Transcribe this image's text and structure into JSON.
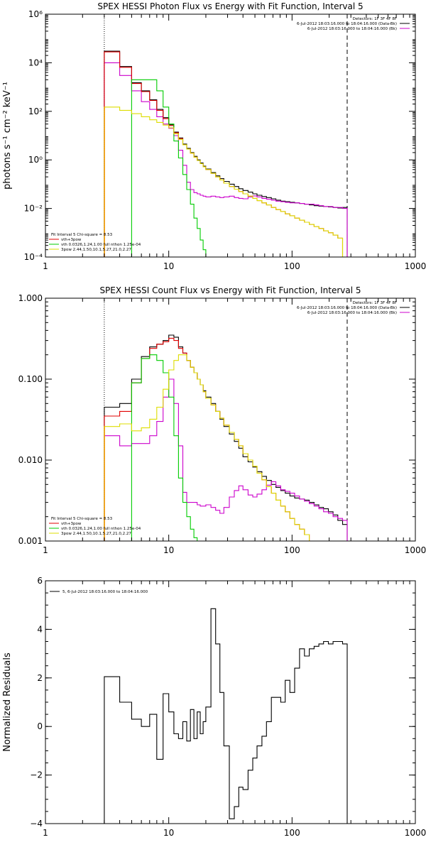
{
  "colors": {
    "black": "#000000",
    "red": "#e00000",
    "green": "#00cc00",
    "magenta": "#cc00cc",
    "yellow": "#dddd00",
    "orange": "#ff9900",
    "background": "#ffffff"
  },
  "chart_data": [
    {
      "type": "line",
      "title": "SPEX HESSI Photon Flux vs Energy with Fit Function, Interval 5",
      "xlabel": "",
      "ylabel": "photons s⁻¹ cm⁻² keV⁻¹",
      "xscale": "log",
      "yscale": "log",
      "xlim": [
        1,
        1000
      ],
      "ylim": [
        0.0001,
        1000000
      ],
      "xticks": [
        1,
        10,
        100,
        1000
      ],
      "xtick_labels": [
        "1",
        "10",
        "100",
        "1000"
      ],
      "yticks": [
        0.0001,
        0.01,
        1,
        100,
        10000,
        1000000
      ],
      "ytick_labels": [
        "10⁻⁴",
        "10⁻²",
        "10⁰",
        "10²",
        "10⁴",
        "10⁶"
      ],
      "vlines": [
        {
          "x": 3,
          "style": "dotted"
        },
        {
          "x": 280,
          "style": "dashed"
        }
      ],
      "legend_top": [
        "Detectors: 1F 3F 4F 8F",
        "6-Jul-2012 18:03:16.000 to 18:04:16.000 (Data-Bk)",
        "6-Jul-2012 18:03:16.000 to 18:04:16.000 (Bk)"
      ],
      "legend_top_placement": "top-right",
      "legend_bottom_title": "Fit Interval  5    Chi-square = 8.53",
      "legend_bottom": [
        "vth+3pow",
        "vth 0.0326,1.24,1.00  full nthon 1.25e-04",
        "3pow 2.44,1.50,10.1,5.27,21.0,2.27"
      ],
      "legend_bottom_placement": "bottom-left",
      "edges": [
        3,
        4,
        5,
        6,
        7,
        8,
        9,
        10,
        11,
        12,
        13,
        14,
        15,
        16,
        17,
        18,
        19,
        20,
        22,
        24,
        26,
        28,
        31,
        34,
        37,
        40,
        44,
        48,
        52,
        57,
        62,
        68,
        74,
        81,
        88,
        96,
        105,
        115,
        126,
        138,
        151,
        165,
        180,
        197,
        215,
        235,
        257,
        280
      ],
      "series": [
        {
          "name": "6-Jul-2012 18:03:16.000 to 18:04:16.000 (Data-Bk)",
          "color_key": "black",
          "values": [
            30000,
            7000,
            1500,
            700,
            300,
            120,
            55,
            28,
            14,
            8,
            4.5,
            3,
            2,
            1.4,
            1.0,
            0.75,
            0.55,
            0.42,
            0.3,
            0.22,
            0.17,
            0.13,
            0.1,
            0.08,
            0.065,
            0.055,
            0.047,
            0.04,
            0.035,
            0.031,
            0.028,
            0.025,
            0.022,
            0.02,
            0.019,
            0.018,
            0.017,
            0.016,
            0.015,
            0.014,
            0.013,
            0.0125,
            0.012,
            0.0115,
            0.011,
            0.0105,
            0.011
          ]
        },
        {
          "name": "6-Jul-2012 18:03:16.000 to 18:04:16.000 (Bk)",
          "color_key": "magenta",
          "values": [
            10000,
            3000,
            700,
            250,
            120,
            60,
            30,
            20,
            10,
            2.5,
            0.6,
            0.12,
            0.06,
            0.045,
            0.04,
            0.035,
            0.032,
            0.03,
            0.032,
            0.03,
            0.028,
            0.03,
            0.032,
            0.028,
            0.026,
            0.025,
            0.03,
            0.033,
            0.03,
            0.026,
            0.024,
            0.022,
            0.02,
            0.019,
            0.018,
            0.017,
            0.017,
            0.016,
            0.015,
            0.015,
            0.014,
            0.013,
            0.012,
            0.012,
            0.011,
            0.011,
            0.01
          ]
        },
        {
          "name": "vth+3pow",
          "color_key": "red",
          "values": [
            28000,
            6500,
            1400,
            650,
            280,
            110,
            50,
            26,
            13,
            7.5,
            4.2,
            2.8,
            1.9,
            1.3,
            0.95,
            0.7,
            0.52,
            0.4,
            0.28,
            0.2,
            0.15,
            0.11,
            0.08,
            0.062,
            0.05,
            0.04,
            0.032,
            0.026,
            0.021,
            0.017,
            0.014,
            0.011,
            0.009,
            0.0075,
            0.006,
            0.005,
            0.004,
            0.0033,
            0.0027,
            0.0022,
            0.0018,
            0.0015,
            0.0012,
            0.001,
            0.0008,
            0.0006,
            0.0001
          ]
        },
        {
          "name": "vth 0.0326,1.24,1.00  full nthon 1.25e-04",
          "color_key": "green",
          "values": [
            0.0001,
            0.0001,
            2000,
            2000,
            2000,
            700,
            150,
            30,
            6,
            1.2,
            0.25,
            0.06,
            0.015,
            0.004,
            0.0015,
            0.0005,
            0.0002,
            0.0001,
            0.0001,
            0.0001,
            0.0001,
            0.0001,
            0.0001,
            0.0001,
            0.0001,
            0.0001,
            0.0001,
            0.0001,
            0.0001,
            0.0001,
            0.0001,
            0.0001,
            0.0001,
            0.0001,
            0.0001,
            0.0001,
            0.0001,
            0.0001,
            0.0001,
            0.0001,
            0.0001,
            0.0001,
            0.0001,
            0.0001,
            0.0001,
            0.0001,
            0.0001
          ]
        },
        {
          "name": "3pow 2.44,1.50,10.1,5.27,21.0,2.27",
          "color_key": "yellow",
          "values": [
            150,
            110,
            80,
            60,
            45,
            35,
            27,
            21,
            12,
            7,
            4.2,
            2.8,
            1.9,
            1.3,
            0.95,
            0.7,
            0.52,
            0.4,
            0.28,
            0.2,
            0.15,
            0.11,
            0.08,
            0.062,
            0.05,
            0.04,
            0.032,
            0.026,
            0.021,
            0.017,
            0.014,
            0.011,
            0.009,
            0.0075,
            0.006,
            0.005,
            0.004,
            0.0033,
            0.0027,
            0.0022,
            0.0018,
            0.0015,
            0.0012,
            0.001,
            0.0008,
            0.0006,
            0.0001
          ]
        }
      ]
    },
    {
      "type": "line",
      "title": "SPEX HESSI Count Flux vs Energy with Fit Function, Interval 5",
      "xlabel": "",
      "ylabel": "",
      "xscale": "log",
      "yscale": "log",
      "xlim": [
        1,
        1000
      ],
      "ylim": [
        0.001,
        1.0
      ],
      "xticks": [
        1,
        10,
        100,
        1000
      ],
      "xtick_labels": [
        "1",
        "10",
        "100",
        "1000"
      ],
      "yticks": [
        0.001,
        0.01,
        0.1,
        1.0
      ],
      "ytick_labels": [
        "0.001",
        "0.010",
        "0.100",
        "1.000"
      ],
      "vlines": [
        {
          "x": 3,
          "style": "dotted"
        },
        {
          "x": 280,
          "style": "dashed"
        }
      ],
      "legend_top": [
        "Detectors: 1F 3F 4F 8F",
        "6-Jul-2012 18:03:16.000 to 18:04:16.000 (Data-Bk)",
        "6-Jul-2012 18:03:16.000 to 18:04:16.000 (Bk)"
      ],
      "legend_top_placement": "top-right",
      "legend_bottom_title": "Fit Interval  5    Chi-square = 8.53",
      "legend_bottom": [
        "vth+3pow",
        "vth 0.0326,1.24,1.00  full nthon 1.25e-04",
        "3pow 2.44,1.50,10.1,5.27,21.0,2.27"
      ],
      "legend_bottom_placement": "bottom-left",
      "edges": [
        3,
        4,
        5,
        6,
        7,
        8,
        9,
        10,
        11,
        12,
        13,
        14,
        15,
        16,
        17,
        18,
        19,
        20,
        22,
        24,
        26,
        28,
        31,
        34,
        37,
        40,
        44,
        48,
        52,
        57,
        62,
        68,
        74,
        81,
        88,
        96,
        105,
        115,
        126,
        138,
        151,
        165,
        180,
        197,
        215,
        235,
        257,
        280
      ],
      "series": [
        {
          "name": "6-Jul-2012 18:03:16.000 to 18:04:16.000 (Data-Bk)",
          "color_key": "black",
          "values": [
            0.045,
            0.05,
            0.1,
            0.19,
            0.25,
            0.27,
            0.3,
            0.35,
            0.33,
            0.25,
            0.21,
            0.17,
            0.14,
            0.12,
            0.1,
            0.085,
            0.072,
            0.06,
            0.05,
            0.04,
            0.032,
            0.026,
            0.021,
            0.017,
            0.014,
            0.011,
            0.0095,
            0.0082,
            0.0072,
            0.0063,
            0.0056,
            0.005,
            0.0046,
            0.0042,
            0.0039,
            0.0036,
            0.0034,
            0.0033,
            0.0032,
            0.003,
            0.0028,
            0.0026,
            0.0025,
            0.0023,
            0.0021,
            0.0018,
            0.0016
          ]
        },
        {
          "name": "6-Jul-2012 18:03:16.000 to 18:04:16.000 (Bk)",
          "color_key": "magenta",
          "values": [
            0.02,
            0.015,
            0.016,
            0.016,
            0.02,
            0.03,
            0.06,
            0.1,
            0.05,
            0.015,
            0.004,
            0.003,
            0.003,
            0.003,
            0.0028,
            0.0027,
            0.0027,
            0.0028,
            0.0026,
            0.0024,
            0.0022,
            0.0026,
            0.0035,
            0.0042,
            0.0048,
            0.0043,
            0.0037,
            0.0035,
            0.0038,
            0.0043,
            0.0049,
            0.0054,
            0.0048,
            0.0043,
            0.0041,
            0.0039,
            0.0036,
            0.0033,
            0.0031,
            0.0029,
            0.0027,
            0.0025,
            0.0023,
            0.0022,
            0.002,
            0.0019,
            0.0018
          ]
        },
        {
          "name": "vth+3pow",
          "color_key": "red",
          "values": [
            0.035,
            0.04,
            0.09,
            0.18,
            0.24,
            0.27,
            0.29,
            0.32,
            0.3,
            0.24,
            0.21,
            0.17,
            0.14,
            0.12,
            0.1,
            0.085,
            0.07,
            0.058,
            0.048,
            0.04,
            0.033,
            0.027,
            0.022,
            0.018,
            0.015,
            0.012,
            0.01,
            0.0084,
            0.0069,
            0.0057,
            0.0047,
            0.0039,
            0.0032,
            0.0027,
            0.0023,
            0.0019,
            0.0016,
            0.0014,
            0.0012,
            0.001,
            0.001,
            0.001,
            0.001,
            0.001,
            0.001,
            0.001,
            0.001
          ]
        },
        {
          "name": "vth 0.0326,1.24,1.00  full nthon 1.25e-04",
          "color_key": "green",
          "values": [
            0.001,
            0.001,
            0.09,
            0.18,
            0.2,
            0.17,
            0.12,
            0.06,
            0.02,
            0.006,
            0.003,
            0.002,
            0.0014,
            0.0011,
            0.001,
            0.001,
            0.001,
            0.001,
            0.001,
            0.001,
            0.001,
            0.001,
            0.001,
            0.001,
            0.001,
            0.001,
            0.001,
            0.001,
            0.001,
            0.001,
            0.001,
            0.001,
            0.001,
            0.001,
            0.001,
            0.001,
            0.001,
            0.001,
            0.001,
            0.001,
            0.001,
            0.001,
            0.001,
            0.001,
            0.001,
            0.001,
            0.001
          ]
        },
        {
          "name": "3pow 2.44,1.50,10.1,5.27,21.0,2.27",
          "color_key": "yellow",
          "values": [
            0.026,
            0.028,
            0.023,
            0.025,
            0.032,
            0.045,
            0.075,
            0.13,
            0.17,
            0.2,
            0.2,
            0.17,
            0.14,
            0.12,
            0.1,
            0.085,
            0.07,
            0.058,
            0.048,
            0.04,
            0.033,
            0.027,
            0.022,
            0.018,
            0.015,
            0.012,
            0.01,
            0.0084,
            0.0069,
            0.0057,
            0.0047,
            0.0039,
            0.0032,
            0.0027,
            0.0023,
            0.0019,
            0.0016,
            0.0014,
            0.0012,
            0.001,
            0.001,
            0.001,
            0.001,
            0.001,
            0.001,
            0.001,
            0.001
          ]
        }
      ]
    },
    {
      "type": "line",
      "title": "",
      "xlabel": "",
      "ylabel": "Normalized Residuals",
      "xscale": "log",
      "yscale": "linear",
      "xlim": [
        1,
        1000
      ],
      "ylim": [
        -4,
        6
      ],
      "xticks": [
        1,
        10,
        100,
        1000
      ],
      "xtick_labels": [
        "1",
        "10",
        "100",
        "1000"
      ],
      "yticks": [
        -4,
        -2,
        0,
        2,
        4,
        6
      ],
      "ytick_labels": [
        "−4",
        "−2",
        "0",
        "2",
        "4",
        "6"
      ],
      "legend": [
        "5,  6-Jul-2012 18:03:16.000 to 18:04:16.000"
      ],
      "legend_placement": "top-left",
      "edges": [
        3,
        4,
        5,
        6,
        7,
        8,
        9,
        10,
        11,
        12,
        13,
        14,
        15,
        16,
        17,
        18,
        19,
        20,
        22,
        24,
        26,
        28,
        31,
        34,
        37,
        40,
        44,
        48,
        52,
        57,
        62,
        68,
        74,
        81,
        88,
        96,
        105,
        115,
        126,
        138,
        151,
        165,
        180,
        197,
        215,
        235,
        257,
        280
      ],
      "series": [
        {
          "name": "5,  6-Jul-2012 18:03:16.000 to 18:04:16.000",
          "color_key": "black",
          "values": [
            2.05,
            1.0,
            0.3,
            0.0,
            0.5,
            -1.35,
            1.35,
            0.6,
            -0.3,
            -0.5,
            0.2,
            -0.6,
            0.7,
            -0.5,
            0.6,
            -0.3,
            0.2,
            0.8,
            4.85,
            3.4,
            1.4,
            -0.8,
            -3.8,
            -3.3,
            -2.5,
            -2.6,
            -1.8,
            -1.3,
            -0.8,
            -0.4,
            0.2,
            1.2,
            1.2,
            1.0,
            1.9,
            1.4,
            2.4,
            3.2,
            2.9,
            3.2,
            3.3,
            3.4,
            3.5,
            3.4,
            3.5,
            3.5,
            3.4
          ]
        }
      ]
    }
  ]
}
